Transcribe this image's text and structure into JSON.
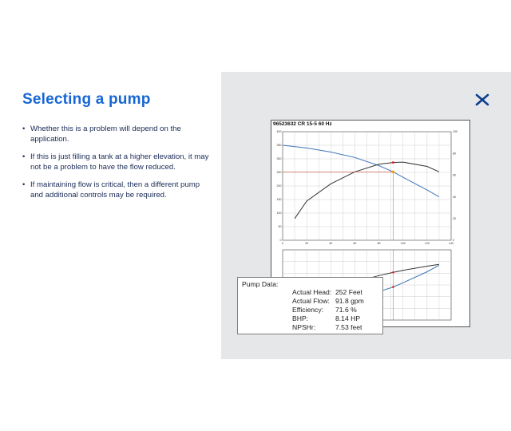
{
  "slide": {
    "title": "Selecting a pump",
    "bullets": [
      "Whether this is a problem will depend on the application.",
      "If this is just filling a tank at a higher elevation, it may not be a problem to have the flow reduced.",
      "If maintaining flow is critical, then a different pump and additional controls may be required."
    ],
    "logo_icon": "grundfos-x-icon",
    "accent_color": "#1766d6"
  },
  "chart": {
    "header": "96523632 CR 15-5 60 Hz"
  },
  "pump_data": {
    "heading": "Pump Data:",
    "rows": [
      {
        "label": "Actual Head:",
        "value": "252 Feet"
      },
      {
        "label": "Actual Flow:",
        "value": "91.8 gpm"
      },
      {
        "label": "Efficiency:",
        "value": "71.6 %"
      },
      {
        "label": "BHP:",
        "value": "8.14 HP"
      },
      {
        "label": "NPSHr:",
        "value": "7.53 feet"
      }
    ]
  },
  "chart_data": {
    "type": "line",
    "title": "96523632 CR 15-5 60 Hz",
    "xlabel": "",
    "ylabel": "",
    "xlim": [
      0,
      140
    ],
    "grid": true,
    "operating_point": {
      "flow": 91.8,
      "head": 252,
      "efficiency": 71.6,
      "bhp": 8.14,
      "npshr": 7.53
    },
    "series": [
      {
        "x": [
          0,
          20,
          40,
          60,
          80,
          91.8,
          100,
          120,
          130
        ],
        "values": [
          350,
          340,
          325,
          305,
          275,
          252,
          232,
          185,
          160
        ]
      },
      {
        "x": [
          10,
          20,
          40,
          60,
          80,
          91.8,
          100,
          120,
          130
        ],
        "values": [
          20,
          36,
          52,
          63,
          70,
          71.6,
          72,
          68,
          63
        ]
      },
      {
        "x": [
          0,
          20,
          40,
          60,
          80,
          91.8,
          100,
          120,
          130
        ],
        "values": [
          3,
          4.5,
          5.5,
          6.5,
          7.6,
          8.14,
          8.5,
          9.2,
          9.5
        ]
      },
      {
        "x": [
          0,
          20,
          40,
          60,
          80,
          91.8,
          100,
          120,
          130
        ],
        "values": [
          1,
          2,
          3.5,
          5,
          6.5,
          7.53,
          8.5,
          11,
          12.5
        ]
      }
    ]
  }
}
